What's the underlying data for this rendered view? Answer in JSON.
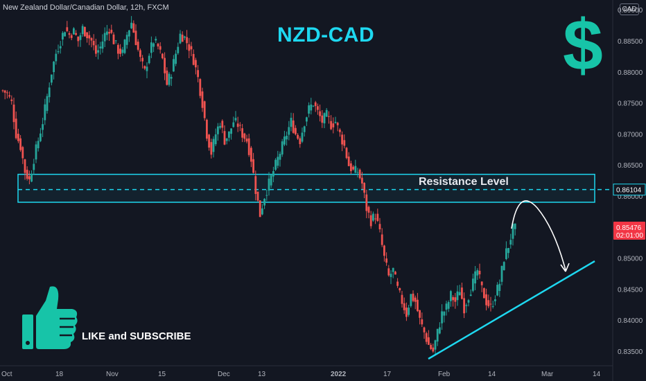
{
  "header": {
    "symbol_label": "New Zealand Dollar/Canadian Dollar, 12h, FXCM",
    "currency_badge": "CAD"
  },
  "overlays": {
    "title": "NZD-CAD",
    "currency_symbol": "$",
    "resistance_label": "Resistance Level",
    "cta": "LIKE and SUBSCRIBE"
  },
  "colors": {
    "background": "#131722",
    "up_candle": "#26a69a",
    "down_candle": "#ef5350",
    "accent_cyan": "#1ed8f0",
    "dollar_green": "#17c4a8",
    "price_tag_red": "#f23645",
    "axis_text": "#b2b5be"
  },
  "icons": {
    "thumb": "thumbs-up-icon"
  },
  "chart_data": {
    "type": "candlestick",
    "title": "NZD-CAD",
    "ylim": [
      0.834,
      0.8935
    ],
    "y_ticks": [
      "0.83500",
      "0.84000",
      "0.84500",
      "0.85000",
      "0.85500",
      "0.86000",
      "0.86500",
      "0.87000",
      "0.87500",
      "0.88000",
      "0.88500",
      "0.89000"
    ],
    "x_ticks": [
      "Oct",
      "18",
      "Nov",
      "15",
      "Dec",
      "13",
      "2022",
      "17",
      "Feb",
      "14",
      "Mar",
      "14"
    ],
    "resistance_level": 0.86104,
    "resistance_zone": [
      0.859,
      0.8635
    ],
    "current_price": "0.85476",
    "countdown": "02:01:00",
    "trendline": [
      [
        0.8352,
        0.851
      ]
    ],
    "forecast_arrow": "rise to resistance then fall back to the rising trendline",
    "price_path": [
      0.877,
      0.8765,
      0.875,
      0.87,
      0.868,
      0.864,
      0.8625,
      0.866,
      0.869,
      0.872,
      0.876,
      0.88,
      0.883,
      0.885,
      0.887,
      0.886,
      0.8865,
      0.885,
      0.887,
      0.886,
      0.885,
      0.883,
      0.884,
      0.886,
      0.887,
      0.885,
      0.8835,
      0.883,
      0.886,
      0.888,
      0.885,
      0.882,
      0.88,
      0.883,
      0.885,
      0.884,
      0.882,
      0.878,
      0.88,
      0.883,
      0.886,
      0.8855,
      0.884,
      0.882,
      0.879,
      0.875,
      0.87,
      0.867,
      0.87,
      0.872,
      0.869,
      0.87,
      0.872,
      0.8715,
      0.87,
      0.869,
      0.866,
      0.861,
      0.857,
      0.86,
      0.862,
      0.864,
      0.866,
      0.868,
      0.87,
      0.872,
      0.87,
      0.869,
      0.872,
      0.874,
      0.875,
      0.8735,
      0.872,
      0.873,
      0.8715,
      0.872,
      0.87,
      0.868,
      0.865,
      0.864,
      0.864,
      0.862,
      0.858,
      0.856,
      0.857,
      0.854,
      0.85,
      0.847,
      0.848,
      0.845,
      0.843,
      0.841,
      0.844,
      0.843,
      0.84,
      0.838,
      0.836,
      0.835,
      0.838,
      0.841,
      0.842,
      0.844,
      0.843,
      0.845,
      0.842,
      0.844,
      0.846,
      0.848,
      0.845,
      0.843,
      0.842,
      0.844,
      0.846,
      0.85,
      0.852,
      0.8547
    ]
  }
}
